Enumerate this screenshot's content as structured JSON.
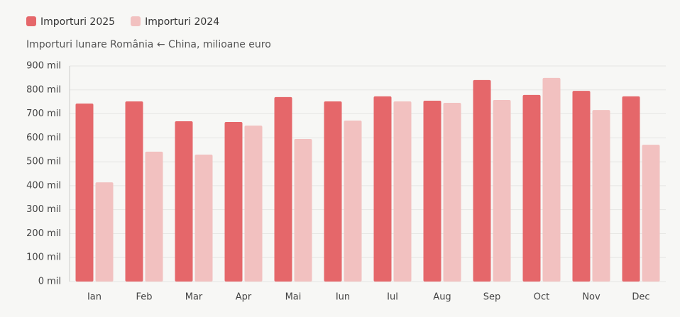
{
  "chart_data": {
    "type": "bar",
    "subtitle": "Importuri lunare România ← China, milioane euro",
    "categories": [
      "Ian",
      "Feb",
      "Mar",
      "Apr",
      "Mai",
      "Iun",
      "Iul",
      "Aug",
      "Sep",
      "Oct",
      "Nov",
      "Dec"
    ],
    "series": [
      {
        "name": "Importuri 2025",
        "color": "#e5676a",
        "values": [
          743,
          752,
          669,
          666,
          770,
          752,
          773,
          755,
          841,
          779,
          796,
          773
        ]
      },
      {
        "name": "Importuri 2024",
        "color": "#f2c1c0",
        "values": [
          414,
          542,
          530,
          651,
          595,
          672,
          752,
          746,
          758,
          850,
          716,
          571
        ]
      }
    ],
    "ylim": [
      0,
      900
    ],
    "yticks": [
      {
        "value": 0,
        "label": "0 mil"
      },
      {
        "value": 100,
        "label": "100 mil"
      },
      {
        "value": 200,
        "label": "200 mil"
      },
      {
        "value": 300,
        "label": "300 mil"
      },
      {
        "value": 400,
        "label": "400 mil"
      },
      {
        "value": 500,
        "label": "500 mil"
      },
      {
        "value": 600,
        "label": "600 mil"
      },
      {
        "value": 700,
        "label": "700 mil"
      },
      {
        "value": 800,
        "label": "800 mil"
      },
      {
        "value": 900,
        "label": "900 mil"
      }
    ],
    "grid": true
  }
}
